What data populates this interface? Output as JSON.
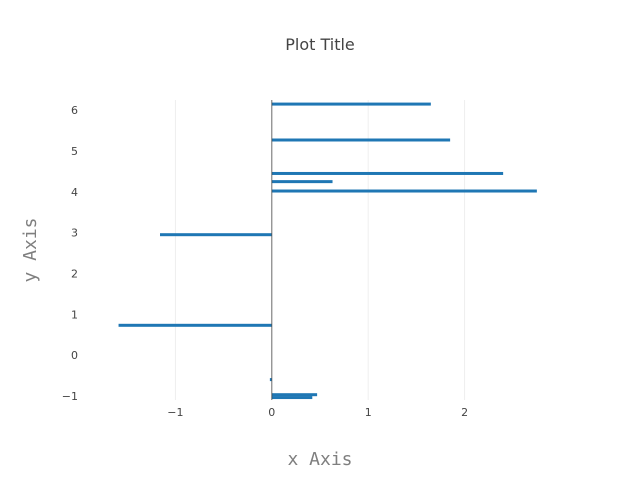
{
  "chart_data": {
    "type": "bar",
    "orientation": "horizontal",
    "title": "Plot Title",
    "xlabel": "x Axis",
    "ylabel": "y Axis",
    "xlim": [
      -1.99,
      2.99
    ],
    "ylim": [
      -1.1,
      6.25
    ],
    "x_ticks": [
      -1,
      0,
      1,
      2
    ],
    "y_ticks": [
      -1,
      0,
      1,
      2,
      3,
      4,
      5,
      6
    ],
    "x_tick_labels": [
      "−1",
      "0",
      "1",
      "2"
    ],
    "y_tick_labels": [
      "−1",
      "0",
      "1",
      "2",
      "3",
      "4",
      "5",
      "6"
    ],
    "grid": true,
    "bar_color": "#1f77b4",
    "bars": [
      {
        "y": 6.15,
        "x": 1.65
      },
      {
        "y": 5.27,
        "x": 1.85
      },
      {
        "y": 4.45,
        "x": 2.4
      },
      {
        "y": 4.25,
        "x": 0.63
      },
      {
        "y": 4.02,
        "x": 2.75
      },
      {
        "y": 2.95,
        "x": -1.16
      },
      {
        "y": 0.73,
        "x": -1.59
      },
      {
        "y": -0.6,
        "x": -0.02
      },
      {
        "y": -0.97,
        "x": 0.47
      },
      {
        "y": -1.04,
        "x": 0.42
      }
    ]
  }
}
